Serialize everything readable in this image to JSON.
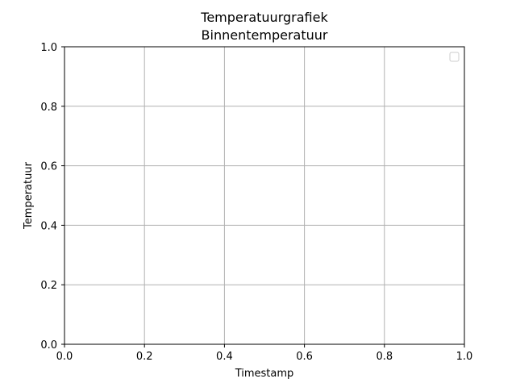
{
  "chart_data": {
    "type": "line",
    "title": "Temperatuurgrafiek",
    "subtitle": "Binnentemperatuur",
    "xlabel": "Timestamp",
    "ylabel": "Temperatuur",
    "xlim": [
      0,
      1
    ],
    "ylim": [
      0,
      1
    ],
    "x_ticks": [
      "0.0",
      "0.2",
      "0.4",
      "0.6",
      "0.8",
      "1.0"
    ],
    "y_ticks": [
      "0.0",
      "0.2",
      "0.4",
      "0.6",
      "0.8",
      "1.0"
    ],
    "grid": true,
    "legend": {
      "placement": "top-right",
      "entries": []
    },
    "series": []
  },
  "colors": {
    "grid": "#b0b0b0",
    "axis": "#000000",
    "background": "#ffffff"
  }
}
